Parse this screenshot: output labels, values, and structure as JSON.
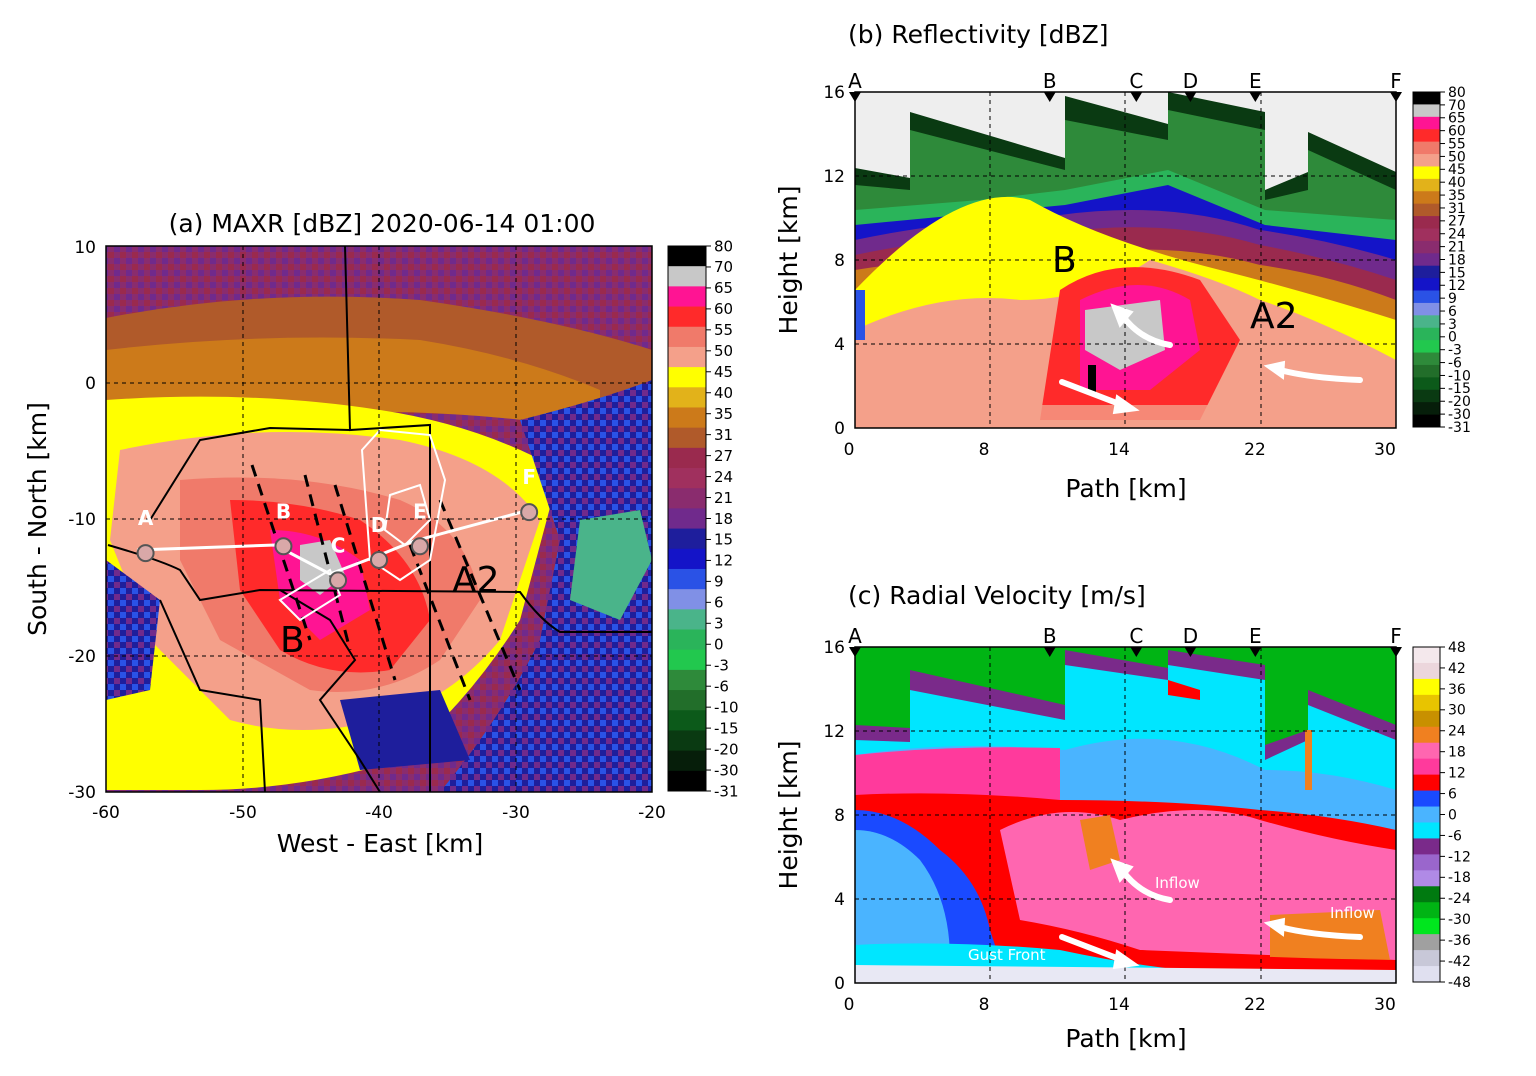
{
  "chart_data": [
    {
      "type": "heatmap",
      "panel": "a",
      "title": "(a) MAXR [dBZ] 2020-06-14 01:00",
      "xlabel": "West - East [km]",
      "ylabel": "South - North [km]",
      "xlim": [
        -60,
        -20
      ],
      "ylim": [
        -30,
        10
      ],
      "xticks": [
        "-60",
        "-50",
        "-40",
        "-30",
        "-20"
      ],
      "yticks": [
        "10",
        "0",
        "-10",
        "-20",
        "-30"
      ],
      "grid": true,
      "colorbar": {
        "labels": [
          "80",
          "70",
          "65",
          "60",
          "55",
          "50",
          "45",
          "40",
          "35",
          "31",
          "27",
          "24",
          "21",
          "18",
          "15",
          "12",
          "9",
          "6",
          "3",
          "0",
          "-3",
          "-6",
          "-10",
          "-15",
          "-20",
          "-30",
          "-31"
        ],
        "colors": [
          "#000000",
          "#c8c8c8",
          "#ff1493",
          "#ff2a2a",
          "#f07a6a",
          "#f4a08a",
          "#ffff00",
          "#e2b21a",
          "#cc7a1a",
          "#b05a2a",
          "#9a2a4e",
          "#a0305e",
          "#8a2c6e",
          "#702a8c",
          "#1e1e9c",
          "#1414c8",
          "#2a52e6",
          "#8090e6",
          "#4ab48a",
          "#2ab45a",
          "#22c84e",
          "#2e8a3a",
          "#226e2a",
          "#0c5a1a",
          "#0a3a12",
          "#061e0a",
          "#000000"
        ]
      },
      "points": [
        {
          "label": "A",
          "x": -57.1,
          "y": -12.5
        },
        {
          "label": "B",
          "x": -47.0,
          "y": -12.0
        },
        {
          "label": "C",
          "x": -43.0,
          "y": -14.5
        },
        {
          "label": "D",
          "x": -40.0,
          "y": -13.0
        },
        {
          "label": "E",
          "x": -37.0,
          "y": -12.0
        },
        {
          "label": "F",
          "x": -29.0,
          "y": -9.5
        }
      ],
      "annotations": [
        "B",
        "A2"
      ]
    },
    {
      "type": "heatmap",
      "panel": "b",
      "title": "(b) Reflectivity [dBZ]",
      "xlabel": "Path [km]",
      "ylabel": "Height [km]",
      "xlim": [
        0,
        30
      ],
      "ylim": [
        0,
        16
      ],
      "xticks": [
        "0",
        "8",
        "14",
        "22",
        "30"
      ],
      "yticks": [
        "0",
        "4",
        "8",
        "12",
        "16"
      ],
      "grid": true,
      "section_markers": [
        {
          "label": "A",
          "x": 0
        },
        {
          "label": "B",
          "x": 10.8
        },
        {
          "label": "C",
          "x": 15.6
        },
        {
          "label": "D",
          "x": 18.6
        },
        {
          "label": "E",
          "x": 22.2
        },
        {
          "label": "F",
          "x": 30
        }
      ],
      "colorbar": {
        "labels": [
          "80",
          "70",
          "65",
          "60",
          "55",
          "50",
          "45",
          "40",
          "35",
          "31",
          "27",
          "24",
          "21",
          "18",
          "15",
          "12",
          "9",
          "6",
          "3",
          "0",
          "-3",
          "-6",
          "-10",
          "-15",
          "-20",
          "-30",
          "-31"
        ],
        "colors": [
          "#000000",
          "#c8c8c8",
          "#ff1493",
          "#ff2a2a",
          "#f07a6a",
          "#f4a08a",
          "#ffff00",
          "#e2b21a",
          "#cc7a1a",
          "#b05a2a",
          "#9a2a4e",
          "#a0305e",
          "#8a2c6e",
          "#702a8c",
          "#1e1e9c",
          "#1414c8",
          "#2a52e6",
          "#8090e6",
          "#4ab48a",
          "#2ab45a",
          "#22c84e",
          "#2e8a3a",
          "#226e2a",
          "#0c5a1a",
          "#0a3a12",
          "#061e0a",
          "#000000"
        ]
      },
      "annotations": [
        "B",
        "A2"
      ]
    },
    {
      "type": "heatmap",
      "panel": "c",
      "title": "(c) Radial Velocity [m/s]",
      "xlabel": "Path [km]",
      "ylabel": "Height [km]",
      "xlim": [
        0,
        30
      ],
      "ylim": [
        0,
        16
      ],
      "xticks": [
        "0",
        "8",
        "14",
        "22",
        "30"
      ],
      "yticks": [
        "0",
        "4",
        "8",
        "12",
        "16"
      ],
      "grid": true,
      "section_markers": [
        {
          "label": "A",
          "x": 0
        },
        {
          "label": "B",
          "x": 10.8
        },
        {
          "label": "C",
          "x": 15.6
        },
        {
          "label": "D",
          "x": 18.6
        },
        {
          "label": "E",
          "x": 22.2
        },
        {
          "label": "F",
          "x": 30
        }
      ],
      "colorbar": {
        "labels": [
          "48",
          "42",
          "36",
          "30",
          "24",
          "18",
          "12",
          "6",
          "0",
          "-6",
          "-12",
          "-18",
          "-24",
          "-30",
          "-36",
          "-42",
          "-48"
        ],
        "colors": [
          "#f4e8ec",
          "#ecd6dc",
          "#ffff00",
          "#e8c400",
          "#c89000",
          "#f08020",
          "#ff66b0",
          "#ff3a9c",
          "#ff0000",
          "#1a4aff",
          "#4ab4ff",
          "#00e6ff",
          "#7a2a8a",
          "#9a66cc",
          "#b08ae6",
          "#007a10",
          "#00b414",
          "#00e61e",
          "#a0a0a0",
          "#c8c8d8",
          "#e0e0f0"
        ]
      },
      "annotations": [
        "Inflow",
        "Inflow",
        "Gust Front"
      ]
    }
  ]
}
